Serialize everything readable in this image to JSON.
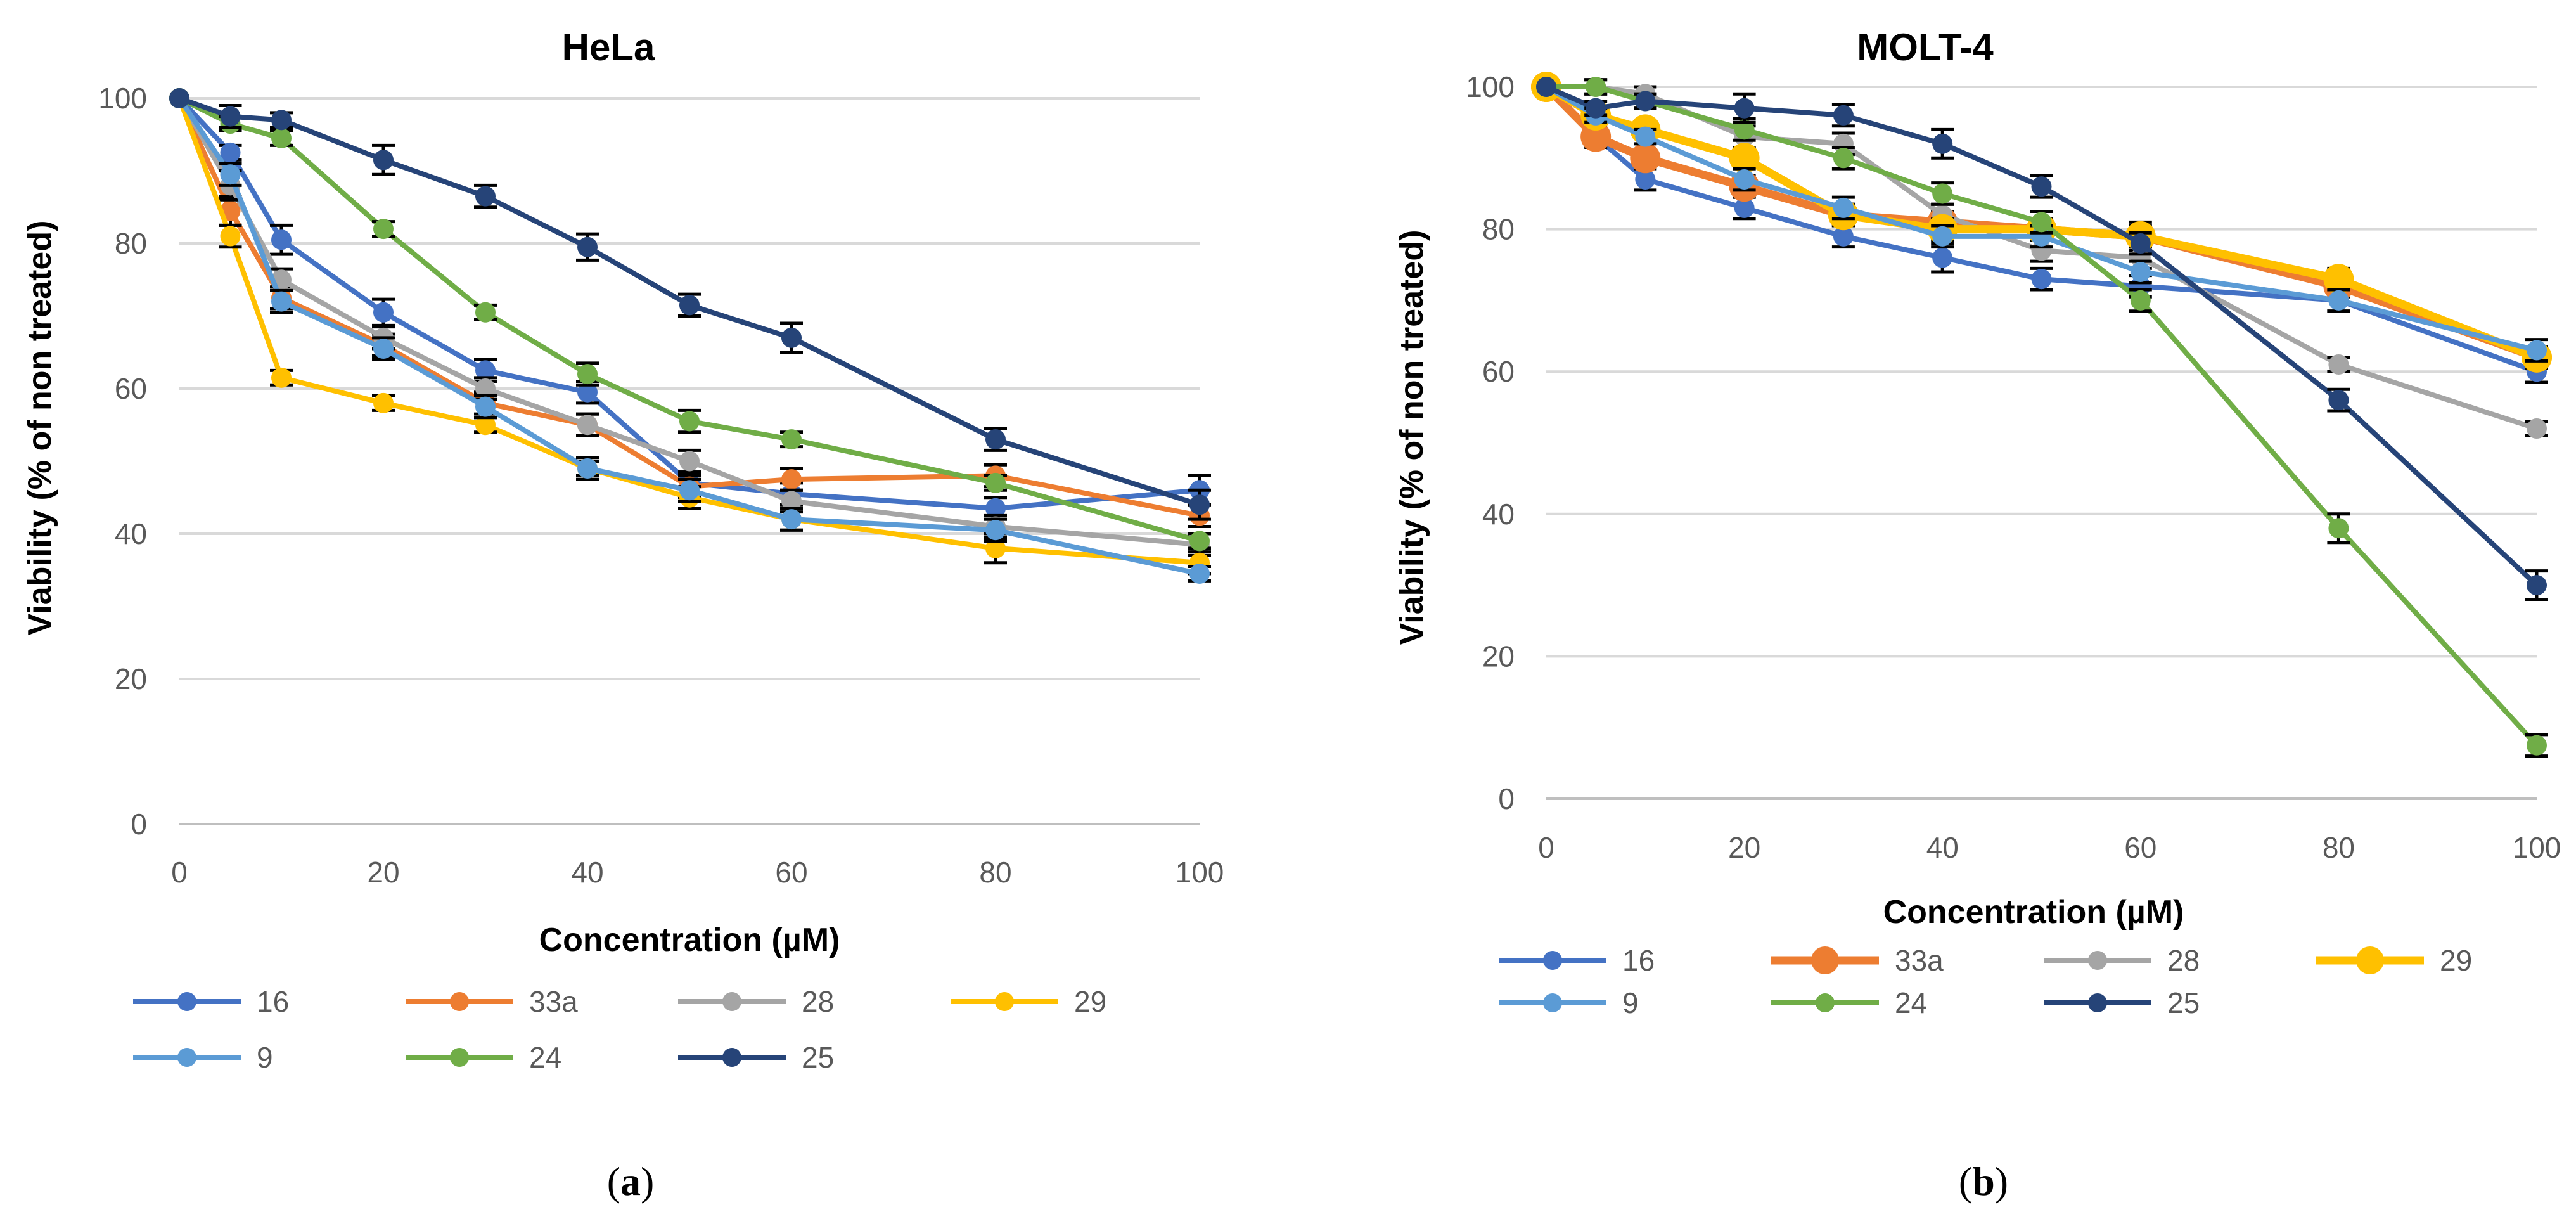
{
  "panels": {
    "a": {
      "caption_open": "(",
      "caption_letter": "a",
      "caption_close": ")"
    },
    "b": {
      "caption_open": "(",
      "caption_letter": "b",
      "caption_close": ")"
    }
  },
  "chart_data": [
    {
      "id": "a",
      "type": "line",
      "title": "HeLa",
      "xlabel": "Concentration (µM)",
      "ylabel": "Viability (% of non treated)",
      "x": [
        0,
        5,
        10,
        20,
        30,
        40,
        50,
        60,
        80,
        100
      ],
      "xticks": [
        0,
        20,
        40,
        60,
        80,
        100
      ],
      "yticks": [
        0,
        20,
        40,
        60,
        80,
        100
      ],
      "xlim": [
        0,
        100
      ],
      "ylim": [
        0,
        100
      ],
      "grid": true,
      "legend_position": "bottom",
      "series": [
        {
          "name": "16",
          "color": "#4472C4",
          "values": [
            100,
            92.5,
            80.5,
            70.5,
            62.5,
            59.5,
            47,
            45.5,
            43.5,
            46
          ],
          "errors": [
            0,
            1,
            2,
            1.8,
            1.5,
            1.5,
            1.5,
            1.5,
            1.5,
            2
          ]
        },
        {
          "name": "33a",
          "color": "#ED7D31",
          "values": [
            100,
            84.5,
            72.5,
            66,
            58,
            55,
            46.5,
            47.5,
            48,
            42.5
          ],
          "errors": [
            0,
            2,
            1.5,
            1.5,
            1.5,
            1.5,
            1.5,
            1.5,
            1.5,
            1.5
          ]
        },
        {
          "name": "28",
          "color": "#A5A5A5",
          "values": [
            100,
            88,
            75,
            67,
            60,
            55,
            50,
            44.5,
            41,
            38.5
          ],
          "errors": [
            0,
            2,
            1.5,
            1.5,
            1.5,
            1.5,
            1.5,
            1.5,
            1.5,
            1.5
          ]
        },
        {
          "name": "29",
          "color": "#FFC000",
          "values": [
            100,
            81,
            61.5,
            58,
            55,
            49,
            45,
            42,
            38,
            36
          ],
          "errors": [
            0,
            1.5,
            1,
            1,
            1,
            1,
            1.5,
            1.5,
            2,
            1.5
          ]
        },
        {
          "name": "9",
          "color": "#5B9BD5",
          "values": [
            100,
            89.5,
            72,
            65.5,
            57.5,
            49,
            46,
            42,
            40.5,
            34.5
          ],
          "errors": [
            0,
            1.5,
            1.5,
            1.5,
            1.5,
            1.5,
            1.5,
            1.5,
            1.5,
            1
          ]
        },
        {
          "name": "24",
          "color": "#70AD47",
          "values": [
            100,
            96.5,
            94.5,
            82,
            70.5,
            62,
            55.5,
            53,
            47,
            39
          ],
          "errors": [
            0,
            1,
            1,
            1,
            1,
            1.5,
            1.5,
            1,
            1,
            1
          ]
        },
        {
          "name": "25",
          "color": "#264478",
          "values": [
            100,
            97.5,
            97,
            91.5,
            86.5,
            79.5,
            71.5,
            67,
            53,
            44
          ],
          "errors": [
            0,
            1.5,
            1,
            2,
            1.5,
            1.8,
            1.5,
            2,
            1.5,
            2
          ]
        }
      ]
    },
    {
      "id": "b",
      "type": "line",
      "title": "MOLT-4",
      "xlabel": "Concentration (µM)",
      "ylabel": "Viability (% of non treated)",
      "x": [
        0,
        5,
        10,
        20,
        30,
        40,
        50,
        60,
        80,
        100
      ],
      "xticks": [
        0,
        20,
        40,
        60,
        80,
        100
      ],
      "yticks": [
        0,
        20,
        40,
        60,
        80,
        100
      ],
      "xlim": [
        0,
        100
      ],
      "ylim": [
        0,
        100
      ],
      "grid": true,
      "legend_position": "bottom",
      "series": [
        {
          "name": "16",
          "color": "#4472C4",
          "values": [
            100,
            93,
            87,
            83,
            79,
            76,
            73,
            72,
            70,
            60
          ],
          "errors": [
            0,
            1.5,
            1.5,
            1.5,
            1.5,
            2,
            1.5,
            1.5,
            1.5,
            1.5
          ]
        },
        {
          "name": "33a",
          "color": "#ED7D31",
          "values": [
            100,
            93,
            90,
            86,
            82,
            81,
            80,
            79,
            72,
            62
          ],
          "errors": [
            0,
            1,
            1,
            1.5,
            1.5,
            1.5,
            1.5,
            2,
            1.5,
            1.5
          ]
        },
        {
          "name": "28",
          "color": "#A5A5A5",
          "values": [
            100,
            100,
            99,
            93,
            92,
            82,
            77,
            76,
            61,
            52
          ],
          "errors": [
            0,
            1,
            1,
            1.5,
            1.5,
            1.5,
            1.5,
            1.5,
            1,
            1
          ]
        },
        {
          "name": "29",
          "color": "#FFC000",
          "values": [
            100,
            96,
            94,
            90,
            82,
            80,
            80,
            79,
            73,
            62
          ],
          "errors": [
            0,
            1,
            1,
            1.5,
            1.5,
            1.5,
            1.5,
            1.5,
            1.5,
            1.5
          ]
        },
        {
          "name": "9",
          "color": "#5B9BD5",
          "values": [
            100,
            96,
            93,
            87,
            83,
            79,
            79,
            74,
            70,
            63
          ],
          "errors": [
            0,
            1,
            1,
            1.5,
            1.5,
            1.5,
            1.5,
            1.5,
            1.5,
            1.5
          ]
        },
        {
          "name": "24",
          "color": "#70AD47",
          "values": [
            100,
            100,
            98,
            94,
            90,
            85,
            81,
            70,
            38,
            7.5
          ],
          "errors": [
            0,
            1,
            1,
            1.5,
            1.5,
            1.5,
            1.5,
            1.5,
            2,
            1.5
          ]
        },
        {
          "name": "25",
          "color": "#264478",
          "values": [
            100,
            97,
            98,
            97,
            96,
            92,
            86,
            78,
            56,
            30
          ],
          "errors": [
            0,
            1,
            1,
            2,
            1.5,
            2,
            1.5,
            1.5,
            1.5,
            2
          ]
        }
      ]
    }
  ]
}
